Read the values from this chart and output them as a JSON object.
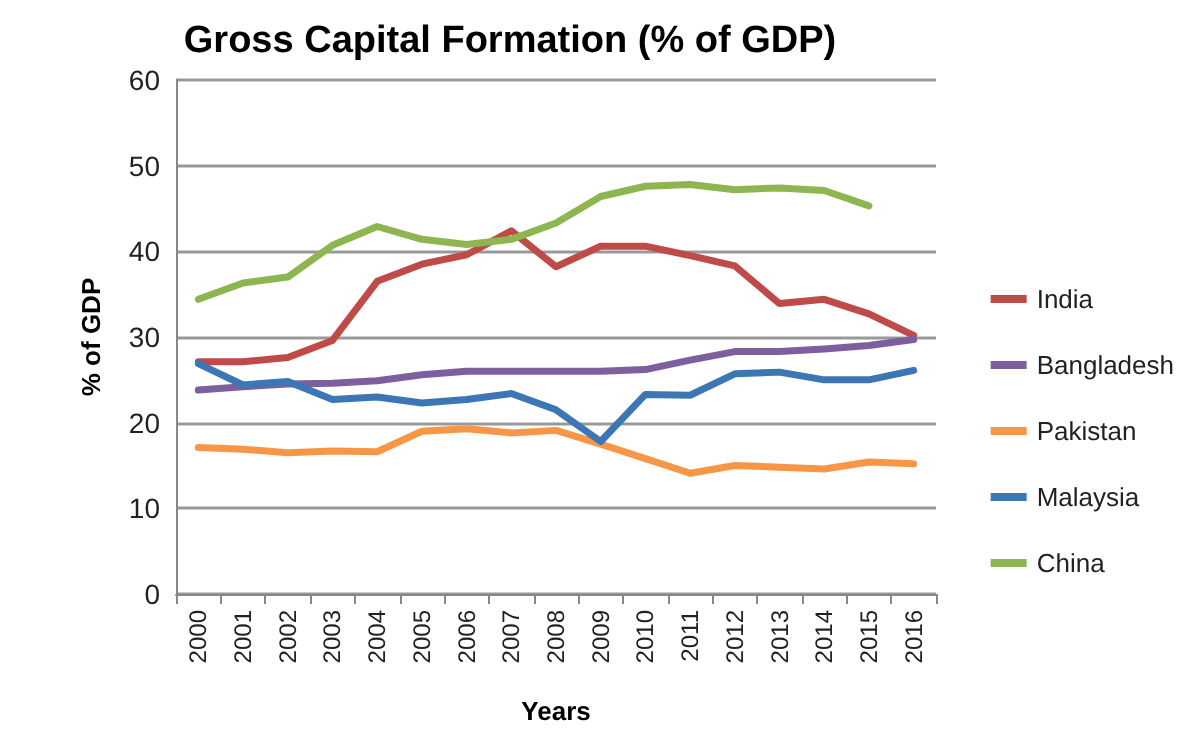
{
  "chart_data": {
    "type": "line",
    "title": "Gross Capital Formation (% of GDP)",
    "xlabel": "Years",
    "ylabel": "% of GDP",
    "categories": [
      "2000",
      "2001",
      "2002",
      "2003",
      "2004",
      "2005",
      "2006",
      "2007",
      "2008",
      "2009",
      "2010",
      "2011",
      "2012",
      "2013",
      "2014",
      "2015",
      "2016"
    ],
    "series": [
      {
        "name": "India",
        "color": "#be4b48",
        "values": [
          27.1,
          27.1,
          27.6,
          29.6,
          36.5,
          38.5,
          39.6,
          42.4,
          38.2,
          40.6,
          40.6,
          39.5,
          38.3,
          33.9,
          34.4,
          32.7,
          30.2
        ]
      },
      {
        "name": "Bangladesh",
        "color": "#7d5fa0",
        "values": [
          23.8,
          24.2,
          24.5,
          24.6,
          24.9,
          25.6,
          26.0,
          26.0,
          26.0,
          26.0,
          26.2,
          27.3,
          28.3,
          28.3,
          28.6,
          29.0,
          29.7
        ]
      },
      {
        "name": "Pakistan",
        "color": "#f79646",
        "values": [
          17.1,
          16.9,
          16.5,
          16.7,
          16.6,
          19.0,
          19.3,
          18.8,
          19.1,
          17.5,
          15.8,
          14.1,
          15.0,
          14.8,
          14.6,
          15.4,
          15.2
        ]
      },
      {
        "name": "Malaysia",
        "color": "#3d76b4",
        "values": [
          26.9,
          24.4,
          24.8,
          22.7,
          23.0,
          22.3,
          22.7,
          23.4,
          21.5,
          17.8,
          23.3,
          23.2,
          25.7,
          25.9,
          25.0,
          25.0,
          26.1
        ]
      },
      {
        "name": "China",
        "color": "#8db550",
        "values": [
          34.4,
          36.3,
          37.0,
          40.7,
          42.9,
          41.4,
          40.8,
          41.4,
          43.3,
          46.4,
          47.6,
          47.8,
          47.2,
          47.4,
          47.1,
          45.3,
          null
        ]
      }
    ],
    "ylim": [
      0,
      60
    ],
    "yticks": [
      0,
      10,
      20,
      30,
      40,
      50,
      60
    ],
    "grid": "y",
    "legend": "right",
    "marker": "none",
    "line_style": "solid"
  }
}
